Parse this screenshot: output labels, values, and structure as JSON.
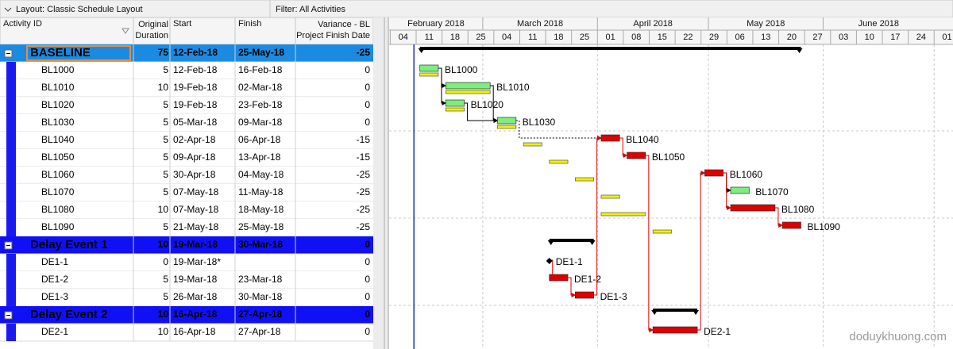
{
  "toolbar": {
    "layout": "Layout: Classic Schedule Layout",
    "filter": "Filter: All Activities"
  },
  "columns": {
    "id": "Activity ID",
    "duration": [
      "Original",
      "Duration"
    ],
    "start": "Start",
    "finish": "Finish",
    "variance": [
      "Variance - BL",
      "Project Finish Date"
    ]
  },
  "rows": [
    {
      "type": "wbs",
      "id": "BASELINE",
      "duration": 75,
      "start": "12-Feb-18",
      "finish": "25-May-18",
      "variance": -25,
      "fill": "#1c8ae0",
      "text_color": "#ffffff",
      "bar": {
        "start": 8,
        "finish": 111,
        "color": "#000000"
      }
    },
    {
      "type": "activity",
      "id": "BL1000",
      "duration": 5,
      "start": "12-Feb-18",
      "finish": "16-Feb-18",
      "variance": 0,
      "bar": {
        "start": 8,
        "finish": 13,
        "color": "#7cee7c",
        "baseline": [
          8,
          13
        ]
      }
    },
    {
      "type": "activity",
      "id": "BL1010",
      "duration": 10,
      "start": "19-Feb-18",
      "finish": "02-Mar-18",
      "variance": 0,
      "bar": {
        "start": 15,
        "finish": 27,
        "color": "#7cee7c",
        "baseline": [
          15,
          27
        ]
      }
    },
    {
      "type": "activity",
      "id": "BL1020",
      "duration": 5,
      "start": "19-Feb-18",
      "finish": "23-Feb-18",
      "variance": 0,
      "bar": {
        "start": 15,
        "finish": 20,
        "color": "#7cee7c",
        "baseline": [
          15,
          20
        ]
      }
    },
    {
      "type": "activity",
      "id": "BL1030",
      "duration": 5,
      "start": "05-Mar-18",
      "finish": "09-Mar-18",
      "variance": 0,
      "bar": {
        "start": 29,
        "finish": 34,
        "color": "#7cee7c",
        "baseline": [
          29,
          34
        ]
      }
    },
    {
      "type": "activity",
      "id": "BL1040",
      "duration": 5,
      "start": "02-Apr-18",
      "finish": "06-Apr-18",
      "variance": -15,
      "bar": {
        "start": 57,
        "finish": 62,
        "color": "#e00000",
        "baseline": [
          36,
          41
        ]
      }
    },
    {
      "type": "activity",
      "id": "BL1050",
      "duration": 5,
      "start": "09-Apr-18",
      "finish": "13-Apr-18",
      "variance": -15,
      "bar": {
        "start": 64,
        "finish": 69,
        "color": "#e00000",
        "baseline": [
          43,
          48
        ]
      }
    },
    {
      "type": "activity",
      "id": "BL1060",
      "duration": 5,
      "start": "30-Apr-18",
      "finish": "04-May-18",
      "variance": -25,
      "bar": {
        "start": 85,
        "finish": 90,
        "color": "#e00000",
        "baseline": [
          50,
          55
        ]
      }
    },
    {
      "type": "activity",
      "id": "BL1070",
      "duration": 5,
      "start": "07-May-18",
      "finish": "11-May-18",
      "variance": -25,
      "bar": {
        "start": 92,
        "finish": 97,
        "color": "#7cee7c",
        "baseline": [
          57,
          62
        ]
      }
    },
    {
      "type": "activity",
      "id": "BL1080",
      "duration": 10,
      "start": "07-May-18",
      "finish": "18-May-18",
      "variance": -25,
      "bar": {
        "start": 92,
        "finish": 104,
        "color": "#e00000",
        "baseline": [
          57,
          69
        ]
      }
    },
    {
      "type": "activity",
      "id": "BL1090",
      "duration": 5,
      "start": "21-May-18",
      "finish": "25-May-18",
      "variance": -25,
      "bar": {
        "start": 106,
        "finish": 111,
        "color": "#e00000",
        "baseline": [
          71,
          76
        ]
      }
    },
    {
      "type": "wbs",
      "id": "Delay Event 1",
      "duration": 10,
      "start": "19-Mar-18",
      "finish": "30-Mar-18",
      "variance": 0,
      "fill": "#1010f4",
      "text_color": "#ffff00",
      "bar": {
        "start": 43,
        "finish": 55,
        "color": "#000000"
      }
    },
    {
      "type": "activity",
      "id": "DE1-1",
      "duration": 0,
      "start": "19-Mar-18*",
      "variance": 0,
      "bar": {
        "start": 43,
        "finish": 43,
        "color": "#000000",
        "milestone": true
      }
    },
    {
      "type": "activity",
      "id": "DE1-2",
      "duration": 5,
      "start": "19-Mar-18",
      "finish": "23-Mar-18",
      "variance": 0,
      "bar": {
        "start": 43,
        "finish": 48,
        "color": "#e00000"
      }
    },
    {
      "type": "activity",
      "id": "DE1-3",
      "duration": 5,
      "start": "26-Mar-18",
      "finish": "30-Mar-18",
      "variance": 0,
      "bar": {
        "start": 50,
        "finish": 55,
        "color": "#e00000"
      }
    },
    {
      "type": "wbs",
      "id": "Delay Event 2",
      "duration": 10,
      "start": "16-Apr-18",
      "finish": "27-Apr-18",
      "variance": 0,
      "fill": "#1010f4",
      "text_color": "#ffff00",
      "bar": {
        "start": 71,
        "finish": 83,
        "color": "#000000"
      }
    },
    {
      "type": "activity",
      "id": "DE2-1",
      "duration": 10,
      "start": "16-Apr-18",
      "finish": "27-Apr-18",
      "variance": 0,
      "bar": {
        "start": 71,
        "finish": 83,
        "color": "#e00000"
      }
    }
  ],
  "gantt": {
    "xlim": [
      -0.3,
      152.1
    ],
    "data_date": 6.4,
    "months": [
      {
        "label": "February 2018",
        "start": -3,
        "end": 25
      },
      {
        "label": "March 2018",
        "start": 25,
        "end": 56
      },
      {
        "label": "April 2018",
        "start": 56,
        "end": 86
      },
      {
        "label": "May 2018",
        "start": 86,
        "end": 117
      },
      {
        "label": "June 2018",
        "start": 117,
        "end": 147
      }
    ],
    "weeks": [
      {
        "value": 0,
        "label": "04"
      },
      {
        "value": 7,
        "label": "11"
      },
      {
        "value": 14,
        "label": "18"
      },
      {
        "value": 21,
        "label": "25"
      },
      {
        "value": 28,
        "label": "04"
      },
      {
        "value": 35,
        "label": "11"
      },
      {
        "value": 42,
        "label": "18"
      },
      {
        "value": 49,
        "label": "25"
      },
      {
        "value": 56,
        "label": "01"
      },
      {
        "value": 63,
        "label": "08"
      },
      {
        "value": 70,
        "label": "15"
      },
      {
        "value": 77,
        "label": "22"
      },
      {
        "value": 84,
        "label": "29"
      },
      {
        "value": 91,
        "label": "06"
      },
      {
        "value": 98,
        "label": "13"
      },
      {
        "value": 105,
        "label": "20"
      },
      {
        "value": 112,
        "label": "27"
      },
      {
        "value": 119,
        "label": "03"
      },
      {
        "value": 126,
        "label": "10"
      },
      {
        "value": 133,
        "label": "17"
      },
      {
        "value": 140,
        "label": "24"
      },
      {
        "value": 147,
        "label": "01"
      }
    ]
  },
  "watermark": "doduykhuong.com"
}
